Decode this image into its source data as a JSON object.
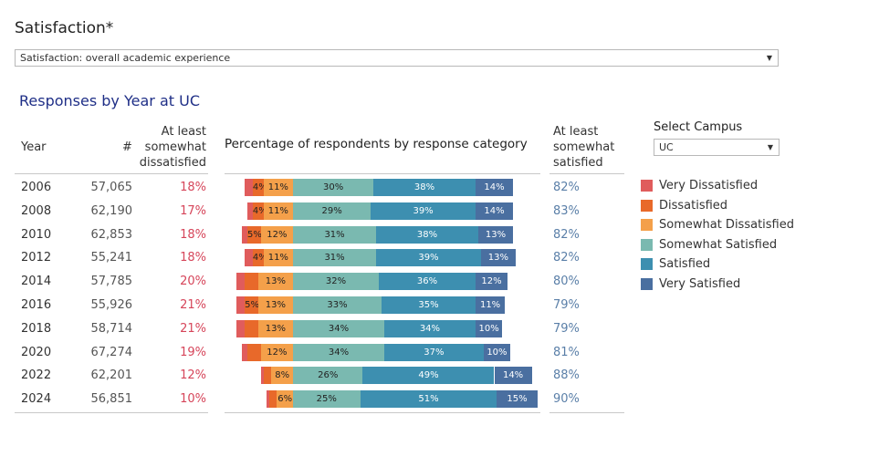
{
  "page_title": "Satisfaction*",
  "measure_dropdown": {
    "value": "Satisfaction: overall academic experience"
  },
  "section_title": "Responses by Year at UC",
  "columns": {
    "year": "Year",
    "count": "#",
    "dissatisfied_line1": "At least",
    "dissatisfied_line2": "somewhat",
    "dissatisfied_line3": "dissatisfied",
    "percentage": "Percentage of respondents by response category",
    "satisfied_line1": "At least",
    "satisfied_line2": "somewhat",
    "satisfied_line3": "satisfied"
  },
  "campus": {
    "label": "Select Campus",
    "value": "UC"
  },
  "colors": {
    "very_dissatisfied": "#e05c5c",
    "dissatisfied": "#e8692a",
    "somewhat_dissatisfied": "#f4a04a",
    "somewhat_satisfied": "#7ab9b0",
    "satisfied": "#3d8fb0",
    "very_satisfied": "#4a6fa0"
  },
  "legend": [
    {
      "label": "Very Dissatisfied",
      "color": "#e05c5c"
    },
    {
      "label": "Dissatisfied",
      "color": "#e8692a"
    },
    {
      "label": "Somewhat Dissatisfied",
      "color": "#f4a04a"
    },
    {
      "label": "Somewhat Satisfied",
      "color": "#7ab9b0"
    },
    {
      "label": "Satisfied",
      "color": "#3d8fb0"
    },
    {
      "label": "Very Satisfied",
      "color": "#4a6fa0"
    }
  ],
  "chart_data": {
    "type": "bar",
    "subtype": "diverging-stacked-horizontal",
    "title": "Percentage of respondents by response category",
    "categories": [
      "2006",
      "2008",
      "2010",
      "2012",
      "2014",
      "2016",
      "2018",
      "2020",
      "2022",
      "2024"
    ],
    "counts": [
      "57,065",
      "62,190",
      "62,853",
      "55,241",
      "57,785",
      "55,926",
      "58,714",
      "67,274",
      "62,201",
      "56,851"
    ],
    "at_least_somewhat_dissatisfied": [
      "18%",
      "17%",
      "18%",
      "18%",
      "20%",
      "21%",
      "21%",
      "19%",
      "12%",
      "10%"
    ],
    "at_least_somewhat_satisfied": [
      "82%",
      "83%",
      "82%",
      "82%",
      "80%",
      "79%",
      "79%",
      "81%",
      "88%",
      "90%"
    ],
    "series": [
      {
        "name": "Very Dissatisfied",
        "values": [
          3,
          2,
          2,
          3,
          3,
          3,
          3,
          2,
          1,
          1
        ],
        "labels": [
          "",
          "",
          "",
          "",
          "",
          "",
          "",
          "",
          "",
          ""
        ]
      },
      {
        "name": "Dissatisfied",
        "values": [
          4,
          4,
          5,
          4,
          5,
          5,
          5,
          5,
          3,
          3
        ],
        "labels": [
          "4%",
          "4%",
          "5%",
          "4%",
          "",
          "5%",
          "",
          "",
          "",
          ""
        ]
      },
      {
        "name": "Somewhat Dissatisfied",
        "values": [
          11,
          11,
          12,
          11,
          13,
          13,
          13,
          12,
          8,
          6
        ],
        "labels": [
          "11%",
          "11%",
          "12%",
          "11%",
          "13%",
          "13%",
          "13%",
          "12%",
          "8%",
          "6%"
        ]
      },
      {
        "name": "Somewhat Satisfied",
        "values": [
          30,
          29,
          31,
          31,
          32,
          33,
          34,
          34,
          26,
          25
        ],
        "labels": [
          "30%",
          "29%",
          "31%",
          "31%",
          "32%",
          "33%",
          "34%",
          "34%",
          "26%",
          "25%"
        ]
      },
      {
        "name": "Satisfied",
        "values": [
          38,
          39,
          38,
          39,
          36,
          35,
          34,
          37,
          49,
          51
        ],
        "labels": [
          "38%",
          "39%",
          "38%",
          "39%",
          "36%",
          "35%",
          "34%",
          "37%",
          "49%",
          "51%"
        ]
      },
      {
        "name": "Very Satisfied",
        "values": [
          14,
          14,
          13,
          13,
          12,
          11,
          10,
          10,
          14,
          15
        ],
        "labels": [
          "14%",
          "14%",
          "13%",
          "13%",
          "12%",
          "11%",
          "10%",
          "10%",
          "14%",
          "15%"
        ]
      }
    ]
  }
}
